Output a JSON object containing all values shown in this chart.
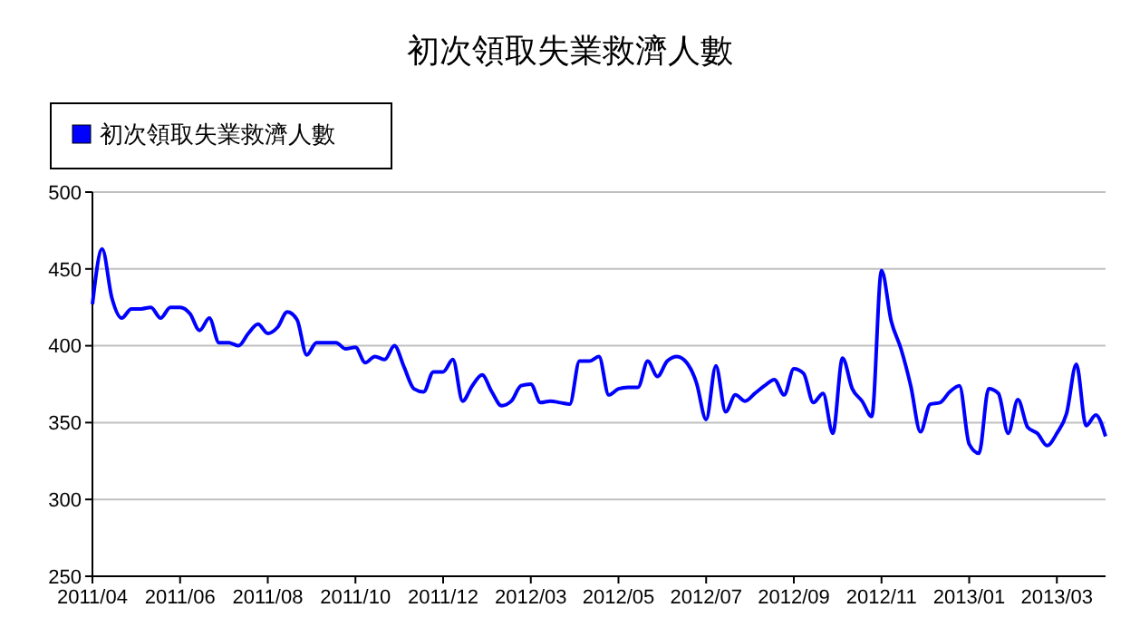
{
  "chart_data": {
    "type": "line",
    "title": "初次領取失業救濟人數",
    "categories": [
      "2011/04",
      null,
      null,
      null,
      null,
      null,
      null,
      null,
      null,
      "2011/06",
      null,
      null,
      null,
      null,
      null,
      null,
      null,
      null,
      "2011/08",
      null,
      null,
      null,
      null,
      null,
      null,
      null,
      null,
      "2011/10",
      null,
      null,
      null,
      null,
      null,
      null,
      null,
      null,
      "2011/12",
      null,
      null,
      null,
      null,
      null,
      null,
      null,
      null,
      "2012/03",
      null,
      null,
      null,
      null,
      null,
      null,
      null,
      null,
      "2012/05",
      null,
      null,
      null,
      null,
      null,
      null,
      null,
      null,
      "2012/07",
      null,
      null,
      null,
      null,
      null,
      null,
      null,
      null,
      "2012/09",
      null,
      null,
      null,
      null,
      null,
      null,
      null,
      null,
      "2012/11",
      null,
      null,
      null,
      null,
      null,
      null,
      null,
      null,
      "2013/01",
      null,
      null,
      null,
      null,
      null,
      null,
      null,
      null,
      "2013/03",
      null,
      null,
      null,
      null,
      null
    ],
    "series": [
      {
        "name": "初次領取失業救濟人數",
        "color": "#0000ff",
        "values": [
          427,
          463,
          431,
          418,
          424,
          424,
          425,
          418,
          425,
          425,
          421,
          410,
          418,
          402,
          402,
          400,
          408,
          414,
          408,
          412,
          422,
          417,
          394,
          402,
          402,
          402,
          398,
          399,
          389,
          393,
          391,
          400,
          386,
          372,
          370,
          383,
          383,
          391,
          364,
          374,
          381,
          370,
          361,
          364,
          374,
          375,
          363,
          364,
          363,
          362,
          390,
          390,
          393,
          368,
          372,
          373,
          373,
          390,
          380,
          390,
          393,
          389,
          376,
          352,
          387,
          357,
          368,
          364,
          369,
          374,
          378,
          368,
          385,
          382,
          363,
          369,
          343,
          392,
          372,
          364,
          354,
          449,
          416,
          398,
          374,
          344,
          362,
          363,
          370,
          374,
          336,
          330,
          372,
          369,
          343,
          365,
          347,
          343,
          335,
          343,
          356,
          388,
          348,
          355,
          341
        ]
      }
    ],
    "ylim": [
      250,
      500
    ],
    "yticks": [
      250,
      300,
      350,
      400,
      450,
      500
    ],
    "grid": "y",
    "legend": "top left",
    "marker": "none",
    "line_style": "solid"
  }
}
